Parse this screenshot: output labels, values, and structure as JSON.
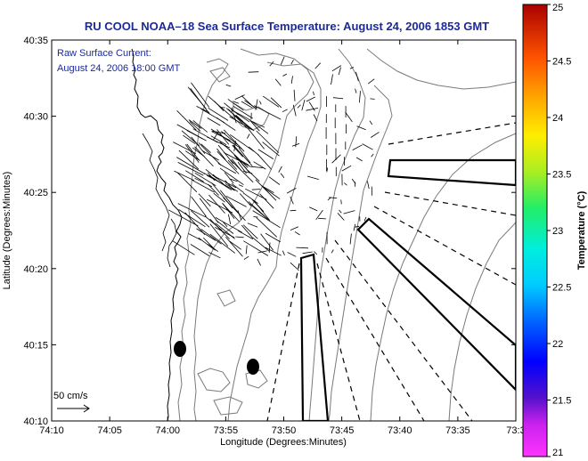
{
  "title": "RU COOL  NOAA–18  Sea Surface Temperature:  August 24, 2006 1853 GMT",
  "annotation": {
    "line1": "Raw Surface Current:",
    "line2": "August 24, 2006 18:00 GMT"
  },
  "scale": {
    "label": "50 cm/s",
    "value": 50,
    "unit": "cm/s"
  },
  "axes": {
    "xlabel": "Longitude (Degrees:Minutes)",
    "ylabel": "Latitude (Degrees:Minutes)",
    "xticks": [
      "74:10",
      "74:05",
      "74:00",
      "73:55",
      "73:50",
      "73:45",
      "73:40",
      "73:35",
      "73:3"
    ],
    "yticks": [
      "40:35",
      "40:30",
      "40:25",
      "40:20",
      "40:15",
      "40:10"
    ]
  },
  "colorbar": {
    "label": "Temperature (°C)",
    "ticks": [
      "25",
      "24.5",
      "24",
      "23.5",
      "23",
      "22.5",
      "22",
      "21.5",
      "21"
    ],
    "min": 21,
    "max": 25
  },
  "colors": {
    "title": "#1a2a9c",
    "land": "#ffffff",
    "contour": "#7a7a7a"
  }
}
